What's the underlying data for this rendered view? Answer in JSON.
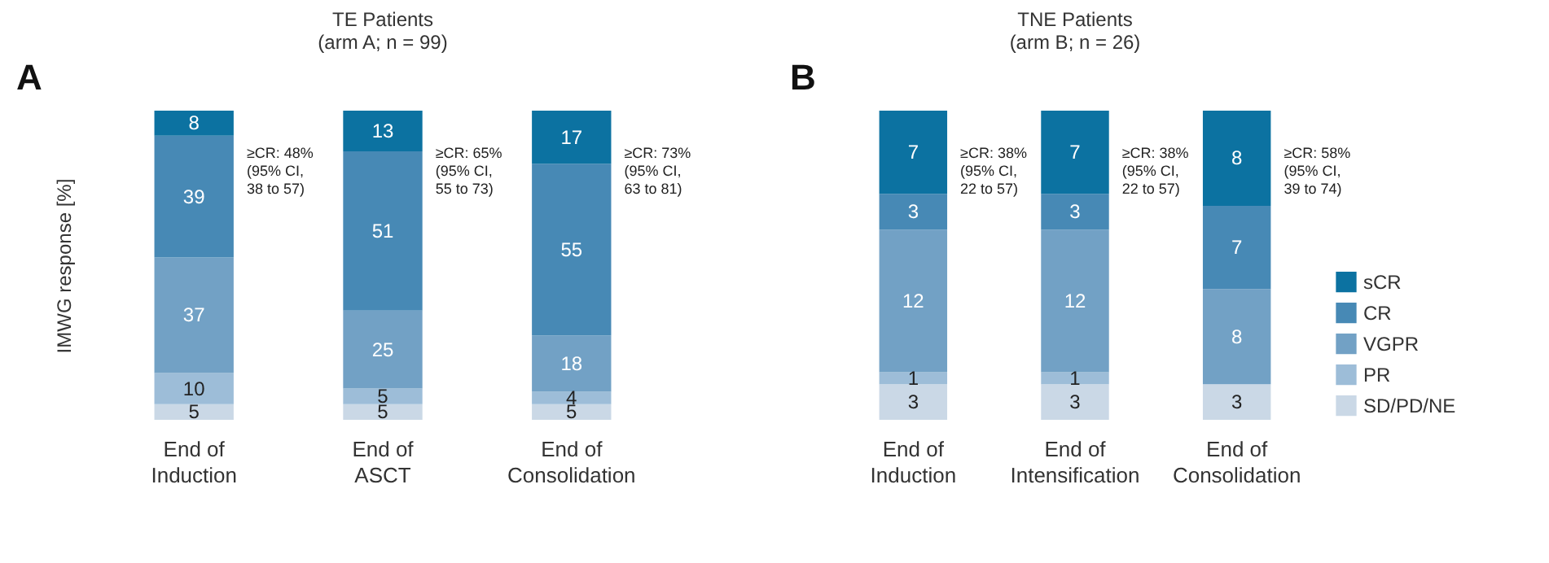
{
  "chart_data": [
    {
      "type": "bar",
      "stacked": true,
      "title": "TE Patients",
      "subtitle": "(arm A; n = 99)",
      "ylabel": "IMWG response [%]",
      "tick_labels": "x",
      "data_labels": true,
      "legend": false,
      "categories": [
        "End of\nInduction",
        "End of\nASCT",
        "End of\nConsolidation"
      ],
      "series": [
        {
          "color": "#cad8e6",
          "values": [
            5,
            5,
            5
          ]
        },
        {
          "color": "#9dbdd8",
          "values": [
            10,
            5,
            4
          ]
        },
        {
          "color": "#72a1c5",
          "values": [
            37,
            25,
            18
          ]
        },
        {
          "color": "#4789b5",
          "values": [
            39,
            51,
            55
          ]
        },
        {
          "color": "#0c72a1",
          "values": [
            8,
            13,
            17
          ]
        }
      ],
      "annotations": [
        "A",
        "≥CR: 48%\n(95% CI,\n38 to 57)",
        "≥CR: 65%\n(95% CI,\n55 to 73)",
        "≥CR: 73%\n(95% CI,\n63 to 81)"
      ]
    },
    {
      "type": "bar",
      "stacked": true,
      "title": "TNE Patients",
      "subtitle": "(arm B; n = 26)",
      "tick_labels": "x",
      "legend": "right",
      "categories": [
        "End of\nInduction",
        "End of\nIntensification",
        "End of\nConsolidation"
      ],
      "series": [
        {
          "name": "SD/PD/NE",
          "color": "#cad8e6",
          "values": [
            3,
            3,
            3
          ],
          "value_labels": [
            "3",
            "3",
            "3"
          ]
        },
        {
          "name": "PR",
          "color": "#9dbdd8",
          "values": [
            1,
            1,
            0
          ],
          "value_labels": [
            "1",
            "1",
            null
          ]
        },
        {
          "name": "VGPR",
          "color": "#72a1c5",
          "values": [
            12,
            12,
            8
          ],
          "value_labels": [
            "12",
            "12",
            "8"
          ]
        },
        {
          "name": "CR",
          "color": "#4789b5",
          "values": [
            3,
            3,
            7
          ],
          "value_labels": [
            "3",
            "3",
            "7"
          ]
        },
        {
          "name": "sCR",
          "color": "#0c72a1",
          "values": [
            7,
            7,
            8
          ],
          "value_labels": [
            "7",
            "7",
            "8"
          ]
        }
      ],
      "annotations": [
        "B",
        "≥CR: 38%\n(95% CI,\n22 to 57)",
        "≥CR: 38%\n(95% CI,\n22 to 57)",
        "≥CR: 58%\n(95% CI,\n39 to 74)"
      ]
    }
  ]
}
